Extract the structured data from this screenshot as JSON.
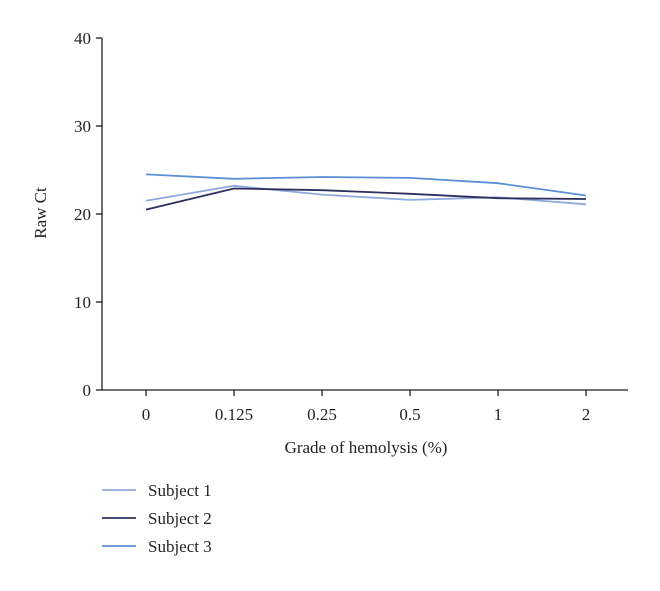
{
  "chart_data": {
    "type": "line",
    "categories": [
      "0",
      "0.125",
      "0.25",
      "0.5",
      "1",
      "2"
    ],
    "series": [
      {
        "name": "Subject 1",
        "values": [
          21.5,
          23.2,
          22.2,
          21.6,
          21.9,
          21.1
        ],
        "color": "#8ea9dc"
      },
      {
        "name": "Subject 2",
        "values": [
          20.5,
          22.9,
          22.7,
          22.3,
          21.8,
          21.7
        ],
        "color": "#2e2f5e"
      },
      {
        "name": "Subject 3",
        "values": [
          24.5,
          24.0,
          24.2,
          24.1,
          23.5,
          22.1
        ],
        "color": "#5b8fd6"
      }
    ],
    "xlabel": "Grade of hemolysis (%)",
    "ylabel": "Raw Ct",
    "ylim": [
      0,
      40
    ],
    "yticks": [
      0,
      10,
      20,
      30,
      40
    ],
    "grid": false,
    "legend_position": "bottom-left",
    "axis_color": "#231f20"
  }
}
